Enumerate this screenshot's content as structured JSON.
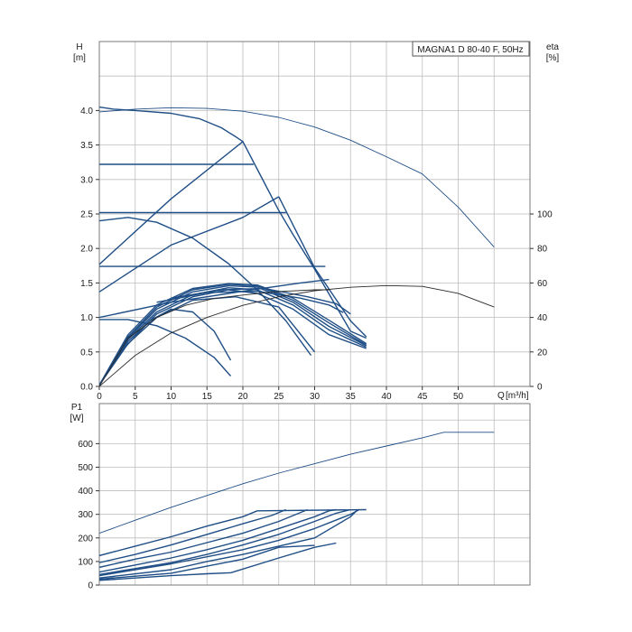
{
  "chart_data": [
    {
      "type": "line",
      "title": "MAGNA1 D 80-40 F, 50Hz",
      "ylabel": "H",
      "yunit": "[m]",
      "xlabel": "Q",
      "xunit": "[m³/h]",
      "y2label": "eta",
      "y2unit": "[%]",
      "xlim": [
        0,
        60
      ],
      "ylim": [
        0,
        5
      ],
      "y2lim": [
        0,
        200
      ],
      "grid": true,
      "xticks": [
        "0",
        "5",
        "10",
        "15",
        "20",
        "25",
        "30",
        "35",
        "40",
        "45",
        "50"
      ],
      "yticks": [
        "0.0",
        "0.5",
        "1.0",
        "1.5",
        "2.0",
        "2.5",
        "3.0",
        "3.5",
        "4.0"
      ],
      "y2ticks": [
        "0",
        "20",
        "40",
        "60",
        "80",
        "100"
      ],
      "colors": {
        "curve": "#1f4e86",
        "eta": "#2a2a2a",
        "grid": "#bdbdbd"
      },
      "series": [
        {
          "kind": "head",
          "points": [
            [
              0,
              4.05
            ],
            [
              2,
              4.02
            ],
            [
              5,
              4.0
            ],
            [
              10,
              3.96
            ],
            [
              14,
              3.88
            ],
            [
              17,
              3.75
            ],
            [
              19,
              3.62
            ],
            [
              20,
              3.55
            ],
            [
              22.5,
              3.05
            ],
            [
              25,
              2.55
            ],
            [
              27,
              2.2
            ],
            [
              30,
              1.7
            ],
            [
              32.5,
              1.25
            ],
            [
              35,
              0.8
            ],
            [
              37.2,
              0.7
            ]
          ]
        },
        {
          "kind": "head",
          "points": [
            [
              0,
              3.22
            ],
            [
              21.5,
              3.22
            ]
          ]
        },
        {
          "kind": "head",
          "points": [
            [
              0,
              2.52
            ],
            [
              26,
              2.52
            ]
          ]
        },
        {
          "kind": "head",
          "points": [
            [
              0,
              1.74
            ],
            [
              31.5,
              1.74
            ]
          ]
        },
        {
          "kind": "head",
          "points": [
            [
              0,
              1.77
            ],
            [
              10,
              2.72
            ],
            [
              20,
              3.55
            ]
          ]
        },
        {
          "kind": "head",
          "points": [
            [
              0,
              1.37
            ],
            [
              10,
              2.05
            ],
            [
              20,
              2.45
            ],
            [
              25,
              2.75
            ]
          ]
        },
        {
          "kind": "head",
          "points": [
            [
              25,
              2.75
            ],
            [
              30,
              1.72
            ],
            [
              35,
              0.95
            ],
            [
              37.2,
              0.72
            ]
          ]
        },
        {
          "kind": "head",
          "points": [
            [
              0,
              2.4
            ],
            [
              4,
              2.45
            ],
            [
              8,
              2.38
            ],
            [
              13,
              2.15
            ],
            [
              18,
              1.78
            ],
            [
              22,
              1.4
            ],
            [
              26,
              0.95
            ],
            [
              29.5,
              0.45
            ]
          ]
        },
        {
          "kind": "head",
          "points": [
            [
              0,
              1.0
            ],
            [
              10,
              1.22
            ],
            [
              20,
              1.38
            ],
            [
              28,
              1.5
            ],
            [
              32,
              1.55
            ]
          ]
        },
        {
          "kind": "head",
          "points": [
            [
              0,
              0.97
            ],
            [
              4,
              0.97
            ],
            [
              8,
              0.88
            ],
            [
              12,
              0.7
            ],
            [
              16,
              0.42
            ],
            [
              18.3,
              0.15
            ]
          ]
        },
        {
          "kind": "head",
          "points": [
            [
              0,
              0.02
            ],
            [
              3,
              0.5
            ],
            [
              7,
              0.95
            ],
            [
              10,
              1.12
            ],
            [
              13,
              1.08
            ],
            [
              16,
              0.8
            ],
            [
              18.3,
              0.38
            ]
          ]
        },
        {
          "kind": "head",
          "points": [
            [
              0,
              0.02
            ],
            [
              4,
              0.62
            ],
            [
              8,
              1.0
            ],
            [
              13,
              1.25
            ],
            [
              19,
              1.3
            ],
            [
              25,
              1.15
            ],
            [
              30,
              0.5
            ]
          ]
        },
        {
          "kind": "head",
          "points": [
            [
              0,
              0.02
            ],
            [
              4,
              0.65
            ],
            [
              8,
              1.05
            ],
            [
              13,
              1.3
            ],
            [
              18,
              1.4
            ],
            [
              22,
              1.35
            ],
            [
              27,
              1.12
            ],
            [
              32,
              0.75
            ],
            [
              37.2,
              0.55
            ]
          ]
        },
        {
          "kind": "head",
          "points": [
            [
              0,
              0.02
            ],
            [
              4,
              0.68
            ],
            [
              8,
              1.08
            ],
            [
              13,
              1.33
            ],
            [
              18,
              1.43
            ],
            [
              22,
              1.4
            ],
            [
              27,
              1.18
            ],
            [
              32,
              0.82
            ],
            [
              37.2,
              0.57
            ]
          ]
        },
        {
          "kind": "head",
          "points": [
            [
              0,
              0.02
            ],
            [
              4,
              0.7
            ],
            [
              8,
              1.12
            ],
            [
              13,
              1.37
            ],
            [
              18,
              1.46
            ],
            [
              22,
              1.44
            ],
            [
              27,
              1.22
            ],
            [
              32,
              0.87
            ],
            [
              37.2,
              0.59
            ]
          ]
        },
        {
          "kind": "head",
          "points": [
            [
              0,
              0.02
            ],
            [
              4,
              0.72
            ],
            [
              8,
              1.15
            ],
            [
              13,
              1.4
            ],
            [
              18,
              1.48
            ],
            [
              22,
              1.46
            ],
            [
              27,
              1.25
            ],
            [
              32,
              0.92
            ],
            [
              37.2,
              0.6
            ]
          ]
        },
        {
          "kind": "head",
          "points": [
            [
              0,
              0.02
            ],
            [
              4,
              0.75
            ],
            [
              8,
              1.18
            ],
            [
              13,
              1.42
            ],
            [
              18,
              1.49
            ],
            [
              22,
              1.47
            ],
            [
              27,
              1.28
            ],
            [
              32,
              0.96
            ],
            [
              37.2,
              0.62
            ]
          ]
        },
        {
          "kind": "head",
          "points": [
            [
              8,
              1.22
            ],
            [
              15,
              1.36
            ],
            [
              22,
              1.38
            ],
            [
              28,
              1.28
            ],
            [
              32,
              1.18
            ],
            [
              34,
              1.07
            ]
          ]
        },
        {
          "kind": "head",
          "points": [
            [
              10,
              1.28
            ],
            [
              17,
              1.4
            ],
            [
              23,
              1.42
            ],
            [
              29,
              1.3
            ],
            [
              33,
              1.2
            ],
            [
              35,
              1.05
            ]
          ]
        },
        {
          "kind": "eta",
          "axis": "y2",
          "points": [
            [
              0,
              0
            ],
            [
              5,
              18
            ],
            [
              10,
              31
            ],
            [
              15,
              40
            ],
            [
              20,
              47
            ],
            [
              25,
              52
            ],
            [
              30,
              55.5
            ],
            [
              35,
              57.5
            ],
            [
              40,
              58.5
            ],
            [
              45,
              58
            ],
            [
              50,
              54
            ],
            [
              55,
              46
            ]
          ]
        },
        {
          "kind": "eta",
          "axis": "y2",
          "points": [
            [
              0,
              0
            ],
            [
              4,
              28
            ],
            [
              8,
              40
            ],
            [
              12,
              47
            ],
            [
              16,
              51
            ],
            [
              20,
              53
            ],
            [
              25,
              55
            ],
            [
              30,
              56
            ],
            [
              32,
              56
            ]
          ]
        },
        {
          "kind": "head",
          "points": [
            [
              0,
              3.98
            ],
            [
              5,
              4.02
            ],
            [
              10,
              4.04
            ],
            [
              15,
              4.03
            ],
            [
              20,
              3.99
            ],
            [
              25,
              3.9
            ],
            [
              30,
              3.76
            ],
            [
              35,
              3.57
            ],
            [
              40,
              3.33
            ],
            [
              45,
              3.08
            ],
            [
              50,
              2.6
            ],
            [
              55,
              2.02
            ]
          ],
          "thin": true
        }
      ]
    },
    {
      "type": "line",
      "ylabel": "P1",
      "yunit": "[W]",
      "xlim": [
        0,
        60
      ],
      "ylim": [
        0,
        770
      ],
      "grid": true,
      "yticks": [
        "0",
        "100",
        "200",
        "300",
        "400",
        "500",
        "600"
      ],
      "series": [
        {
          "points": [
            [
              0,
              220
            ],
            [
              5,
              275
            ],
            [
              10,
              330
            ],
            [
              15,
              380
            ],
            [
              20,
              430
            ],
            [
              25,
              475
            ],
            [
              30,
              515
            ],
            [
              35,
              555
            ],
            [
              40,
              590
            ],
            [
              45,
              625
            ],
            [
              48,
              648
            ],
            [
              55,
              648
            ]
          ],
          "thin": true
        },
        {
          "points": [
            [
              0,
              125
            ],
            [
              5,
              165
            ],
            [
              10,
              205
            ],
            [
              15,
              250
            ],
            [
              20,
              290
            ],
            [
              22,
              315
            ],
            [
              37.2,
              320
            ]
          ]
        },
        {
          "points": [
            [
              0,
              95
            ],
            [
              5,
              130
            ],
            [
              10,
              170
            ],
            [
              15,
              215
            ],
            [
              20,
              260
            ],
            [
              24,
              295
            ],
            [
              26,
              320
            ]
          ]
        },
        {
          "points": [
            [
              0,
              75
            ],
            [
              5,
              110
            ],
            [
              10,
              140
            ],
            [
              15,
              180
            ],
            [
              20,
              220
            ],
            [
              25,
              270
            ],
            [
              29,
              320
            ]
          ]
        },
        {
          "points": [
            [
              0,
              55
            ],
            [
              5,
              85
            ],
            [
              10,
              115
            ],
            [
              15,
              150
            ],
            [
              20,
              190
            ],
            [
              25,
              240
            ],
            [
              30,
              290
            ],
            [
              32,
              315
            ],
            [
              33,
              320
            ]
          ]
        },
        {
          "points": [
            [
              0,
              45
            ],
            [
              10,
              95
            ],
            [
              15,
              130
            ],
            [
              20,
              170
            ],
            [
              25,
              215
            ],
            [
              30,
              270
            ],
            [
              33,
              305
            ],
            [
              35,
              320
            ]
          ]
        },
        {
          "points": [
            [
              0,
              40
            ],
            [
              10,
              90
            ],
            [
              15,
              120
            ],
            [
              20,
              150
            ],
            [
              25,
              190
            ],
            [
              30,
              240
            ],
            [
              35,
              300
            ],
            [
              36.2,
              320
            ]
          ]
        },
        {
          "points": [
            [
              0,
              30
            ],
            [
              10,
              65
            ],
            [
              15,
              100
            ],
            [
              20,
              130
            ],
            [
              25,
              165
            ],
            [
              30,
              200
            ],
            [
              35,
              290
            ],
            [
              36,
              320
            ]
          ]
        },
        {
          "points": [
            [
              0,
              25
            ],
            [
              10,
              50
            ],
            [
              15,
              80
            ],
            [
              20,
              110
            ],
            [
              25,
              160
            ],
            [
              30,
              168
            ]
          ]
        },
        {
          "points": [
            [
              0,
              20
            ],
            [
              5,
              30
            ],
            [
              10,
              40
            ],
            [
              15,
              48
            ],
            [
              18.3,
              52
            ]
          ]
        },
        {
          "points": [
            [
              18.3,
              52
            ],
            [
              25,
              115
            ],
            [
              30,
              160
            ],
            [
              33,
              178
            ]
          ]
        }
      ]
    }
  ]
}
